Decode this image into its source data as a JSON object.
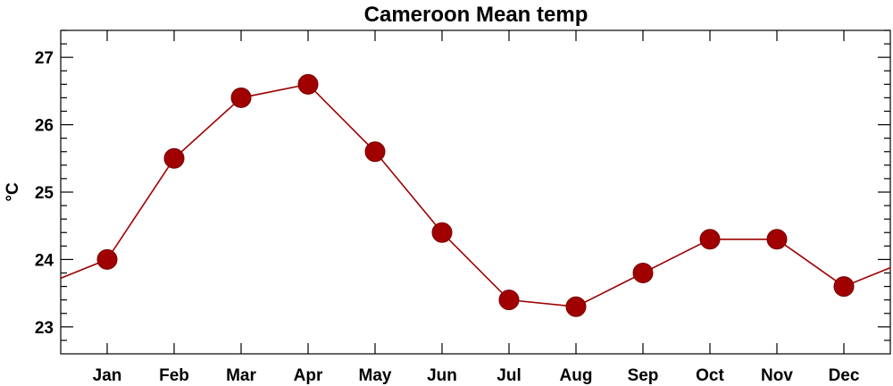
{
  "chart_data": {
    "type": "line",
    "title": "Cameroon Mean temp",
    "xlabel": "",
    "ylabel": "°C",
    "categories": [
      "Jan",
      "Feb",
      "Mar",
      "Apr",
      "May",
      "Jun",
      "Jul",
      "Aug",
      "Sep",
      "Oct",
      "Nov",
      "Dec"
    ],
    "series": [
      {
        "values": [
          24.0,
          25.5,
          26.4,
          26.6,
          25.6,
          24.4,
          23.4,
          23.3,
          23.8,
          24.3,
          24.3,
          23.6
        ]
      }
    ],
    "ylim": [
      22.6,
      27.4
    ],
    "y_ticks": [
      "23",
      "24",
      "25",
      "26",
      "27"
    ],
    "line_wraps_cyclically": true,
    "grid": false,
    "legend": "none",
    "colors": {
      "series": "#a00000",
      "line": "#9b0000"
    }
  }
}
